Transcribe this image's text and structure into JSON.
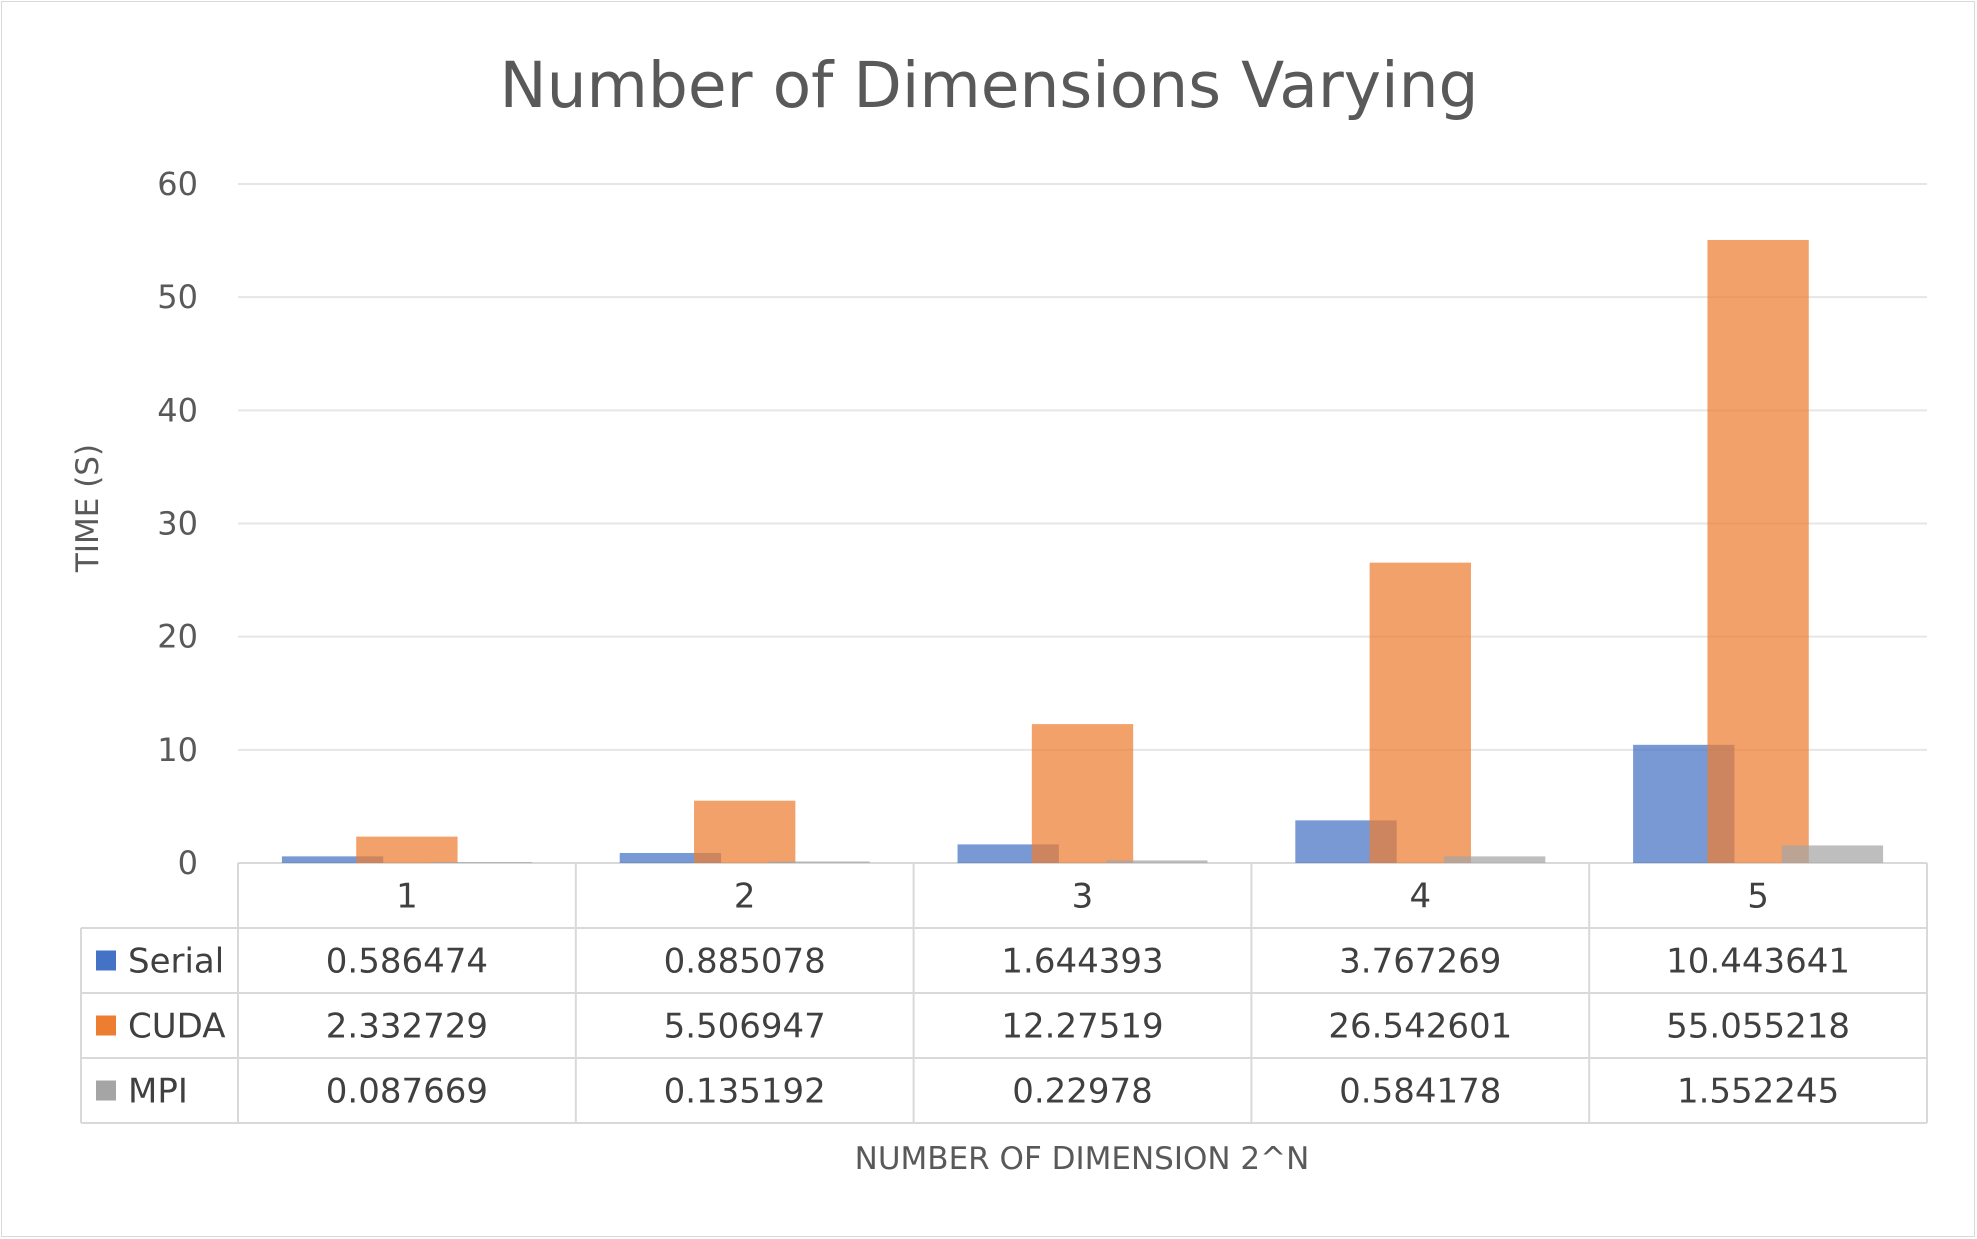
{
  "chart_data": {
    "type": "bar",
    "title": "Number of Dimensions Varying",
    "xlabel": "NUMBER OF DIMENSION 2^N",
    "ylabel": "TIME (S)",
    "ylim": [
      0,
      60
    ],
    "yticks": [
      0,
      10,
      20,
      30,
      40,
      50,
      60
    ],
    "grid": true,
    "legend": "data-table",
    "categories": [
      "1",
      "2",
      "3",
      "4",
      "5"
    ],
    "series": [
      {
        "name": "Serial",
        "color": "#4472c4",
        "values": [
          0.586474,
          0.885078,
          1.644393,
          3.767269,
          10.443641
        ],
        "labels": [
          "0.586474",
          "0.885078",
          "1.644393",
          "3.767269",
          "10.443641"
        ]
      },
      {
        "name": "CUDA",
        "color": "#ed7d31",
        "values": [
          2.332729,
          5.506947,
          12.27519,
          26.542601,
          55.055218
        ],
        "labels": [
          "2.332729",
          "5.506947",
          "12.27519",
          "26.542601",
          "55.055218"
        ]
      },
      {
        "name": "MPI",
        "color": "#a5a5a5",
        "values": [
          0.087669,
          0.135192,
          0.22978,
          0.584178,
          1.552245
        ],
        "labels": [
          "0.087669",
          "0.135192",
          "0.22978",
          "0.584178",
          "1.552245"
        ]
      }
    ]
  }
}
